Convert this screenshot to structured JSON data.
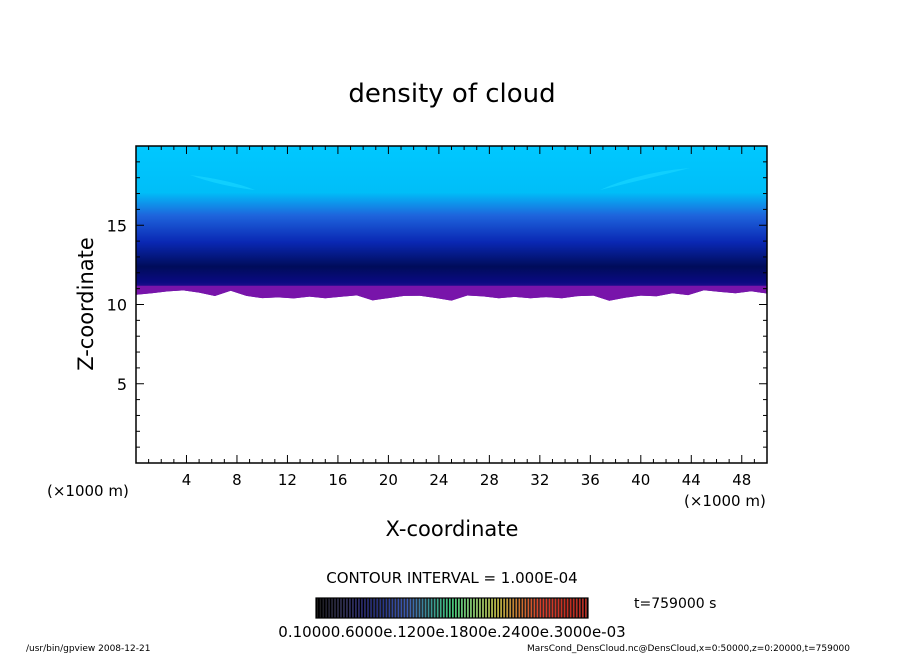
{
  "chart_data": {
    "type": "heatmap",
    "title": "density of cloud",
    "xlabel": "X-coordinate",
    "ylabel": "Z-coordinate",
    "x_unit": "(×1000 m)",
    "y_unit": "(×1000 m)",
    "xlim": [
      0,
      50
    ],
    "ylim": [
      0,
      20
    ],
    "x_ticks": [
      "4",
      "8",
      "12",
      "16",
      "20",
      "24",
      "28",
      "32",
      "36",
      "40",
      "44",
      "48"
    ],
    "y_ticks": [
      "5",
      "10",
      "15"
    ],
    "cloud_base_km": 10.8,
    "cloud_top_km": 20,
    "colorscale": [
      "#000000",
      "#1a1a5a",
      "#3c5ab4",
      "#3cc878",
      "#b4b43c",
      "#dc3c28",
      "#b4281e"
    ],
    "contour_interval": "CONTOUR INTERVAL = 1.000E-04",
    "colorbar_labels": "0.10000.6000e.1200e.1800e.2400e.3000e-03",
    "time_label": "t=759000 s"
  },
  "footer": {
    "left": "/usr/bin/gpview   2008-12-21",
    "right": "MarsCond_DensCloud.nc@DensCloud,x=0:50000,z=0:20000,t=759000"
  }
}
